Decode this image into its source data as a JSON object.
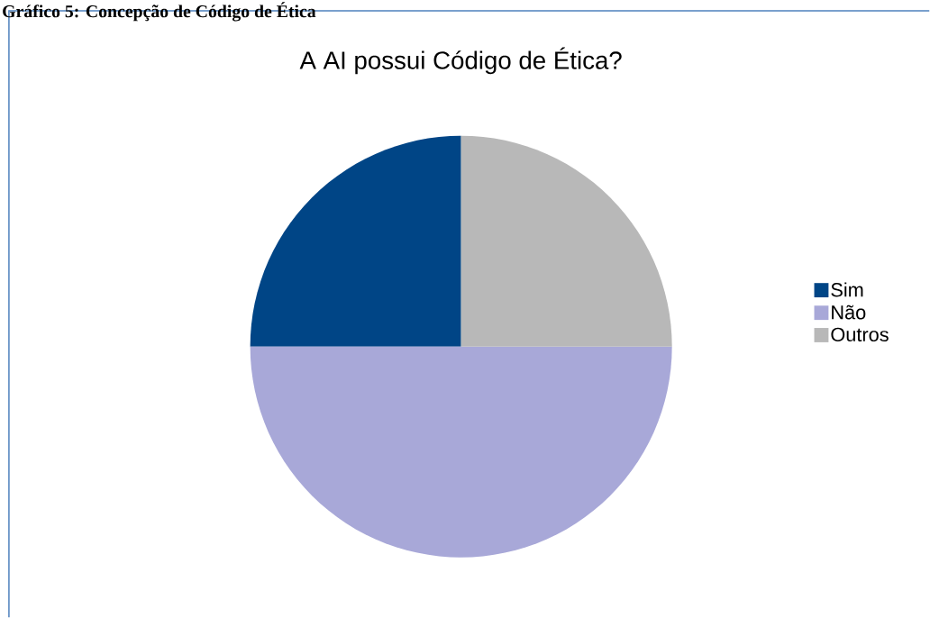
{
  "chart_data": {
    "type": "pie",
    "title": "A AI possui Código de Ética?",
    "annotations": [
      "Gráfico 5: Concepção de Código de Ética"
    ],
    "categories": [
      "Sim",
      "Não",
      "Outros"
    ],
    "values": [
      25,
      50,
      25
    ],
    "colors": [
      "#004586",
      "#a8a8d8",
      "#b8b8b8"
    ],
    "legend": "right"
  }
}
